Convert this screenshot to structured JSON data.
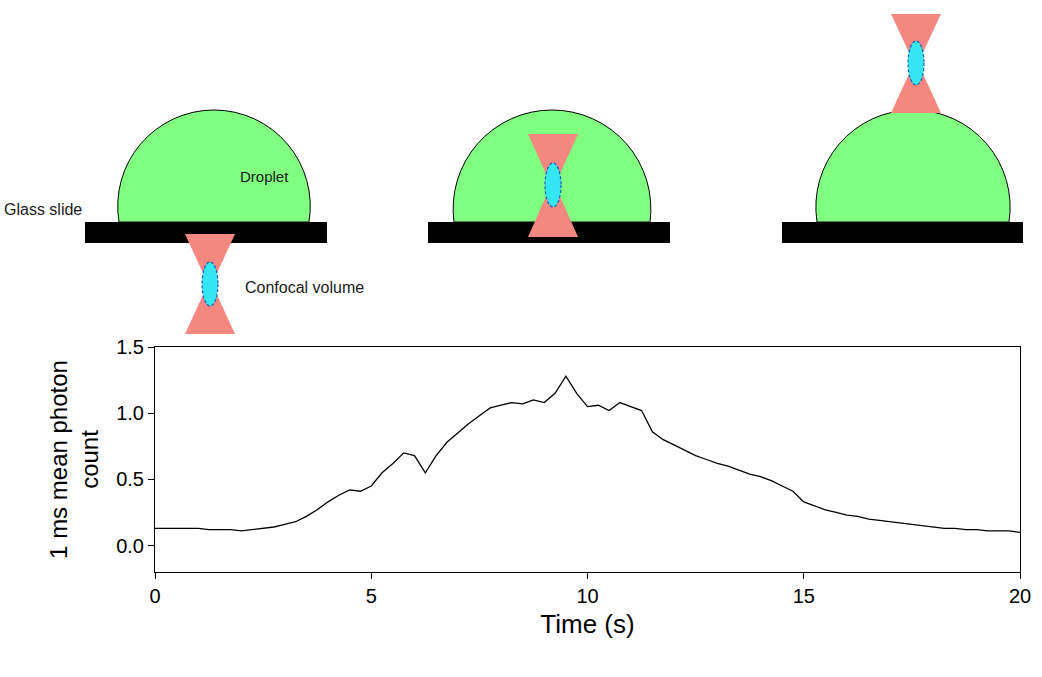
{
  "chart_data": {
    "type": "line",
    "x_label": "Time (s)",
    "y_label": "1 ms mean photon count",
    "x": [
      0,
      0.25,
      0.5,
      0.75,
      1,
      1.25,
      1.5,
      1.75,
      2,
      2.25,
      2.5,
      2.75,
      3,
      3.25,
      3.5,
      3.75,
      4,
      4.25,
      4.5,
      4.75,
      5,
      5.25,
      5.5,
      5.75,
      6,
      6.25,
      6.5,
      6.75,
      7,
      7.25,
      7.5,
      7.75,
      8,
      8.25,
      8.5,
      8.75,
      9,
      9.25,
      9.5,
      9.75,
      10,
      10.25,
      10.5,
      10.75,
      11,
      11.25,
      11.5,
      11.75,
      12,
      12.25,
      12.5,
      12.75,
      13,
      13.25,
      13.5,
      13.75,
      14,
      14.25,
      14.5,
      14.75,
      15,
      15.25,
      15.5,
      15.75,
      16,
      16.25,
      16.5,
      16.75,
      17,
      17.25,
      17.5,
      17.75,
      18,
      18.25,
      18.5,
      18.75,
      19,
      19.25,
      19.5,
      19.75,
      20
    ],
    "values": [
      0.13,
      0.13,
      0.13,
      0.13,
      0.13,
      0.12,
      0.12,
      0.12,
      0.11,
      0.12,
      0.13,
      0.14,
      0.16,
      0.18,
      0.22,
      0.27,
      0.33,
      0.38,
      0.42,
      0.41,
      0.45,
      0.55,
      0.62,
      0.7,
      0.68,
      0.55,
      0.68,
      0.78,
      0.85,
      0.92,
      0.98,
      1.04,
      1.06,
      1.08,
      1.07,
      1.1,
      1.08,
      1.15,
      1.28,
      1.15,
      1.05,
      1.06,
      1.02,
      1.08,
      1.05,
      1.02,
      0.86,
      0.8,
      0.76,
      0.72,
      0.68,
      0.65,
      0.62,
      0.6,
      0.57,
      0.54,
      0.52,
      0.49,
      0.45,
      0.41,
      0.33,
      0.3,
      0.27,
      0.25,
      0.23,
      0.22,
      0.2,
      0.19,
      0.18,
      0.17,
      0.16,
      0.15,
      0.14,
      0.13,
      0.13,
      0.12,
      0.12,
      0.11,
      0.11,
      0.11,
      0.1
    ],
    "color": "#000000",
    "xlim": [
      0,
      20
    ],
    "xticks": [
      0,
      5,
      10,
      15,
      20
    ],
    "ylim": [
      -0.2,
      1.5
    ],
    "yticks": [
      {
        "value": 0,
        "label": "0.0"
      },
      {
        "value": 0.5,
        "label": "0.5"
      },
      {
        "value": 1,
        "label": "1.0"
      },
      {
        "value": 1.5,
        "label": "1.5"
      }
    ],
    "grid": false
  },
  "diagram": {
    "glass_slide": "Glass slide",
    "droplet": "Droplet",
    "confocal_volume": "Confocal volume"
  }
}
